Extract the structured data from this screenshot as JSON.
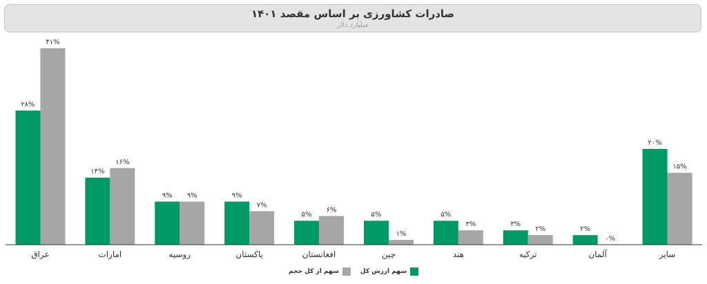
{
  "header": {
    "title": "صادرات کشاورزی بر اساس مقصد ۱۴۰۱",
    "subtitle": "میلیارد دلار"
  },
  "colors": {
    "value_share": "#009966",
    "volume_share": "#a6a6a6"
  },
  "chart_data": {
    "type": "bar",
    "title": "صادرات کشاورزی بر اساس مقصد ۱۴۰۱",
    "subtitle": "میلیارد دلار",
    "categories": [
      "عراق",
      "امارات",
      "روسیه",
      "پاکستان",
      "افغانستان",
      "چین",
      "هند",
      "ترکیه",
      "آلمان",
      "سایر"
    ],
    "series": [
      {
        "name": "سهم ارزش کل",
        "color": "#009966",
        "values": [
          28,
          14,
          9,
          9,
          5,
          5,
          5,
          3,
          2,
          20
        ],
        "labels": [
          "۲۸%",
          "۱۴%",
          "۹%",
          "۹%",
          "۵%",
          "۵%",
          "۵%",
          "۳%",
          "۲%",
          "۲۰%"
        ]
      },
      {
        "name": "سهم از کل حجم",
        "color": "#a6a6a6",
        "values": [
          41,
          16,
          9,
          7,
          6,
          1,
          3,
          2,
          0,
          15
        ],
        "labels": [
          "۴۱%",
          "۱۶%",
          "۹%",
          "۷%",
          "۶%",
          "۱%",
          "۳%",
          "۲%",
          "۰%",
          "۱۵%"
        ]
      }
    ],
    "ylim": [
      0,
      41
    ],
    "grid": false,
    "legend_position": "bottom-center"
  }
}
